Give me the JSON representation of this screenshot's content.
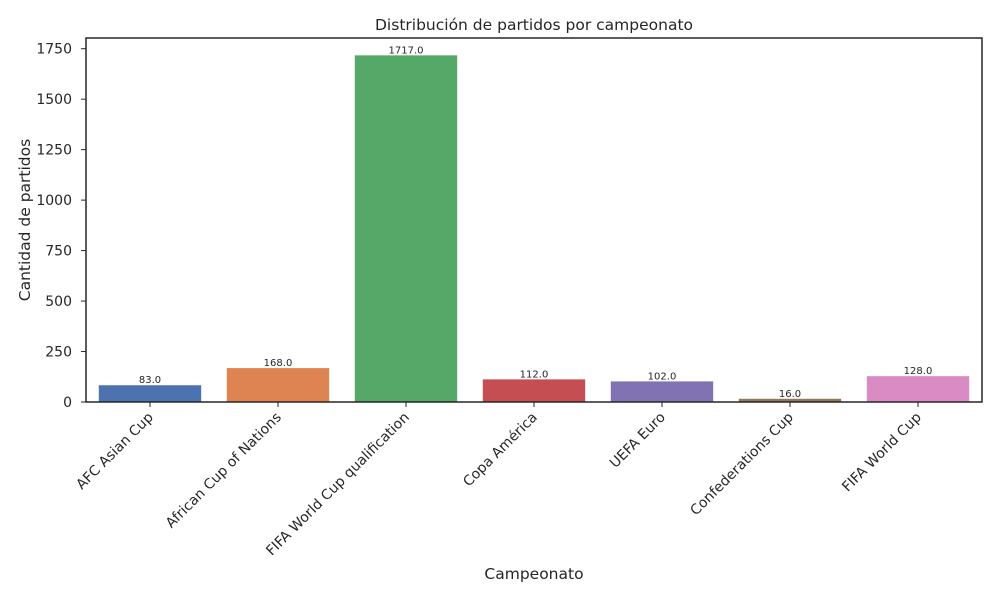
{
  "chart_data": {
    "type": "bar",
    "title": "Distribución de partidos por campeonato",
    "xlabel": "Campeonato",
    "ylabel": "Cantidad de partidos",
    "categories": [
      "AFC Asian Cup",
      "African Cup of Nations",
      "FIFA World Cup qualification",
      "Copa América",
      "UEFA Euro",
      "Confederations Cup",
      "FIFA World Cup"
    ],
    "values": [
      83,
      168,
      1717,
      112,
      102,
      16,
      128
    ],
    "value_labels": [
      "83.0",
      "168.0",
      "1717.0",
      "112.0",
      "102.0",
      "16.0",
      "128.0"
    ],
    "colors": [
      "#4c72b0",
      "#dd8452",
      "#55a868",
      "#c44e52",
      "#8172b3",
      "#937860",
      "#da8bc3"
    ],
    "yticks": [
      0,
      250,
      500,
      750,
      1000,
      1250,
      1500,
      1750
    ],
    "ylim": [
      0,
      1803
    ],
    "grid": false,
    "legend": "none"
  }
}
